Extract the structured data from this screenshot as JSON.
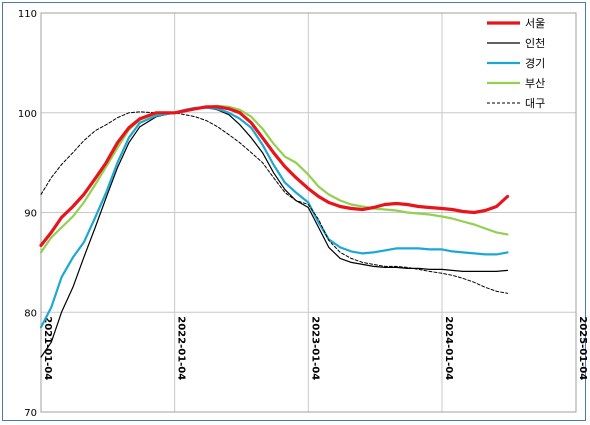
{
  "chart_data": {
    "type": "line",
    "title": "",
    "xlabel": "",
    "ylabel": "",
    "ylim": [
      70,
      110
    ],
    "yticks": [
      70,
      80,
      90,
      100,
      110
    ],
    "xlim": [
      "2021-01-04",
      "2025-01-04"
    ],
    "xticks": [
      "2021-01-04",
      "2022-01-04",
      "2023-01-04",
      "2024-01-04",
      "2025-01-04"
    ],
    "grid": true,
    "legend": "top-right",
    "series": [
      {
        "name": "서울",
        "color": "#e8141b",
        "style": "solid-thick",
        "points": [
          [
            "2021-01-04",
            86.7
          ],
          [
            "2021-02-01",
            88.0
          ],
          [
            "2021-03-01",
            89.5
          ],
          [
            "2021-04-01",
            90.6
          ],
          [
            "2021-05-01",
            91.8
          ],
          [
            "2021-06-01",
            93.4
          ],
          [
            "2021-07-01",
            95.0
          ],
          [
            "2021-08-01",
            97.0
          ],
          [
            "2021-09-01",
            98.5
          ],
          [
            "2021-10-01",
            99.4
          ],
          [
            "2021-11-15",
            100.0
          ],
          [
            "2022-01-04",
            100.0
          ],
          [
            "2022-02-01",
            100.2
          ],
          [
            "2022-03-01",
            100.4
          ],
          [
            "2022-04-01",
            100.6
          ],
          [
            "2022-05-01",
            100.6
          ],
          [
            "2022-06-01",
            100.4
          ],
          [
            "2022-07-01",
            100.0
          ],
          [
            "2022-08-01",
            99.0
          ],
          [
            "2022-09-01",
            97.5
          ],
          [
            "2022-10-01",
            96.0
          ],
          [
            "2022-11-01",
            94.6
          ],
          [
            "2022-12-01",
            93.5
          ],
          [
            "2023-01-04",
            92.4
          ],
          [
            "2023-02-01",
            91.6
          ],
          [
            "2023-03-01",
            91.0
          ],
          [
            "2023-04-01",
            90.6
          ],
          [
            "2023-05-01",
            90.4
          ],
          [
            "2023-06-01",
            90.3
          ],
          [
            "2023-07-01",
            90.5
          ],
          [
            "2023-08-01",
            90.8
          ],
          [
            "2023-09-01",
            90.9
          ],
          [
            "2023-10-01",
            90.8
          ],
          [
            "2023-11-01",
            90.6
          ],
          [
            "2023-12-01",
            90.5
          ],
          [
            "2024-01-04",
            90.4
          ],
          [
            "2024-02-01",
            90.3
          ],
          [
            "2024-03-01",
            90.1
          ],
          [
            "2024-04-01",
            90.0
          ],
          [
            "2024-05-01",
            90.2
          ],
          [
            "2024-06-01",
            90.6
          ],
          [
            "2024-07-01",
            91.6
          ]
        ]
      },
      {
        "name": "인천",
        "color": "#000000",
        "style": "solid-thin",
        "points": [
          [
            "2021-01-04",
            75.5
          ],
          [
            "2021-02-01",
            77.0
          ],
          [
            "2021-03-01",
            80.0
          ],
          [
            "2021-04-01",
            82.5
          ],
          [
            "2021-05-01",
            85.5
          ],
          [
            "2021-06-01",
            88.5
          ],
          [
            "2021-07-01",
            91.5
          ],
          [
            "2021-08-01",
            94.5
          ],
          [
            "2021-09-01",
            97.0
          ],
          [
            "2021-10-01",
            98.6
          ],
          [
            "2021-11-15",
            99.6
          ],
          [
            "2022-01-04",
            100.0
          ],
          [
            "2022-02-01",
            100.2
          ],
          [
            "2022-03-01",
            100.4
          ],
          [
            "2022-04-01",
            100.5
          ],
          [
            "2022-05-01",
            100.3
          ],
          [
            "2022-06-01",
            99.8
          ],
          [
            "2022-07-01",
            98.8
          ],
          [
            "2022-08-01",
            97.5
          ],
          [
            "2022-09-01",
            96.0
          ],
          [
            "2022-10-01",
            94.0
          ],
          [
            "2022-11-01",
            92.3
          ],
          [
            "2022-12-01",
            91.2
          ],
          [
            "2023-01-04",
            90.5
          ],
          [
            "2023-02-01",
            88.5
          ],
          [
            "2023-03-01",
            86.5
          ],
          [
            "2023-04-01",
            85.4
          ],
          [
            "2023-05-01",
            85.0
          ],
          [
            "2023-06-01",
            84.8
          ],
          [
            "2023-07-01",
            84.6
          ],
          [
            "2023-08-01",
            84.5
          ],
          [
            "2023-09-01",
            84.5
          ],
          [
            "2023-10-01",
            84.4
          ],
          [
            "2023-11-01",
            84.4
          ],
          [
            "2023-12-01",
            84.3
          ],
          [
            "2024-01-04",
            84.3
          ],
          [
            "2024-02-01",
            84.2
          ],
          [
            "2024-03-01",
            84.1
          ],
          [
            "2024-04-01",
            84.1
          ],
          [
            "2024-05-01",
            84.1
          ],
          [
            "2024-06-01",
            84.1
          ],
          [
            "2024-07-01",
            84.2
          ]
        ]
      },
      {
        "name": "경기",
        "color": "#1ba8d6",
        "style": "solid-medium",
        "points": [
          [
            "2021-01-04",
            78.5
          ],
          [
            "2021-02-01",
            80.5
          ],
          [
            "2021-03-01",
            83.5
          ],
          [
            "2021-04-01",
            85.5
          ],
          [
            "2021-05-01",
            87.0
          ],
          [
            "2021-06-01",
            89.5
          ],
          [
            "2021-07-01",
            92.0
          ],
          [
            "2021-08-01",
            95.0
          ],
          [
            "2021-09-01",
            97.5
          ],
          [
            "2021-10-01",
            99.0
          ],
          [
            "2021-11-15",
            99.7
          ],
          [
            "2022-01-04",
            100.0
          ],
          [
            "2022-02-01",
            100.3
          ],
          [
            "2022-03-01",
            100.5
          ],
          [
            "2022-04-01",
            100.5
          ],
          [
            "2022-05-01",
            100.4
          ],
          [
            "2022-06-01",
            100.0
          ],
          [
            "2022-07-01",
            99.4
          ],
          [
            "2022-08-01",
            98.5
          ],
          [
            "2022-09-01",
            96.8
          ],
          [
            "2022-10-01",
            94.8
          ],
          [
            "2022-11-01",
            93.0
          ],
          [
            "2022-12-01",
            92.0
          ],
          [
            "2023-01-04",
            91.0
          ],
          [
            "2023-02-01",
            89.0
          ],
          [
            "2023-03-01",
            87.3
          ],
          [
            "2023-04-01",
            86.5
          ],
          [
            "2023-05-01",
            86.1
          ],
          [
            "2023-06-01",
            85.9
          ],
          [
            "2023-07-01",
            86.0
          ],
          [
            "2023-08-01",
            86.2
          ],
          [
            "2023-09-01",
            86.4
          ],
          [
            "2023-10-01",
            86.4
          ],
          [
            "2023-11-01",
            86.4
          ],
          [
            "2023-12-01",
            86.3
          ],
          [
            "2024-01-04",
            86.3
          ],
          [
            "2024-02-01",
            86.1
          ],
          [
            "2024-03-01",
            86.0
          ],
          [
            "2024-04-01",
            85.9
          ],
          [
            "2024-05-01",
            85.8
          ],
          [
            "2024-06-01",
            85.8
          ],
          [
            "2024-07-01",
            86.0
          ]
        ]
      },
      {
        "name": "부산",
        "color": "#92d050",
        "style": "solid-medium",
        "points": [
          [
            "2021-01-04",
            86.0
          ],
          [
            "2021-02-01",
            87.5
          ],
          [
            "2021-03-01",
            88.5
          ],
          [
            "2021-04-01",
            89.6
          ],
          [
            "2021-05-01",
            91.0
          ],
          [
            "2021-06-01",
            92.8
          ],
          [
            "2021-07-01",
            94.6
          ],
          [
            "2021-08-01",
            96.5
          ],
          [
            "2021-09-01",
            98.3
          ],
          [
            "2021-10-01",
            99.3
          ],
          [
            "2021-11-15",
            99.9
          ],
          [
            "2022-01-04",
            100.0
          ],
          [
            "2022-02-01",
            100.2
          ],
          [
            "2022-03-01",
            100.4
          ],
          [
            "2022-04-01",
            100.6
          ],
          [
            "2022-05-01",
            100.7
          ],
          [
            "2022-06-01",
            100.6
          ],
          [
            "2022-07-01",
            100.3
          ],
          [
            "2022-08-01",
            99.6
          ],
          [
            "2022-09-01",
            98.4
          ],
          [
            "2022-10-01",
            96.9
          ],
          [
            "2022-11-01",
            95.6
          ],
          [
            "2022-12-01",
            95.0
          ],
          [
            "2023-01-04",
            93.8
          ],
          [
            "2023-02-01",
            92.6
          ],
          [
            "2023-03-01",
            91.8
          ],
          [
            "2023-04-01",
            91.2
          ],
          [
            "2023-05-01",
            90.8
          ],
          [
            "2023-06-01",
            90.6
          ],
          [
            "2023-07-01",
            90.4
          ],
          [
            "2023-08-01",
            90.3
          ],
          [
            "2023-09-01",
            90.2
          ],
          [
            "2023-10-01",
            90.0
          ],
          [
            "2023-11-01",
            89.9
          ],
          [
            "2023-12-01",
            89.8
          ],
          [
            "2024-01-04",
            89.6
          ],
          [
            "2024-02-01",
            89.4
          ],
          [
            "2024-03-01",
            89.1
          ],
          [
            "2024-04-01",
            88.8
          ],
          [
            "2024-05-01",
            88.4
          ],
          [
            "2024-06-01",
            88.0
          ],
          [
            "2024-07-01",
            87.8
          ]
        ]
      },
      {
        "name": "대구",
        "color": "#000000",
        "style": "dashed",
        "points": [
          [
            "2021-01-04",
            91.8
          ],
          [
            "2021-02-01",
            93.5
          ],
          [
            "2021-03-01",
            94.8
          ],
          [
            "2021-04-01",
            96.0
          ],
          [
            "2021-05-01",
            97.2
          ],
          [
            "2021-06-01",
            98.2
          ],
          [
            "2021-07-01",
            98.8
          ],
          [
            "2021-08-01",
            99.5
          ],
          [
            "2021-09-01",
            100.0
          ],
          [
            "2021-10-01",
            100.1
          ],
          [
            "2021-11-15",
            100.0
          ],
          [
            "2022-01-04",
            100.0
          ],
          [
            "2022-02-01",
            99.8
          ],
          [
            "2022-03-01",
            99.6
          ],
          [
            "2022-04-01",
            99.2
          ],
          [
            "2022-05-01",
            98.6
          ],
          [
            "2022-06-01",
            97.8
          ],
          [
            "2022-07-01",
            97.0
          ],
          [
            "2022-08-01",
            96.0
          ],
          [
            "2022-09-01",
            95.0
          ],
          [
            "2022-10-01",
            93.5
          ],
          [
            "2022-11-01",
            92.0
          ],
          [
            "2022-12-01",
            91.2
          ],
          [
            "2023-01-04",
            90.8
          ],
          [
            "2023-02-01",
            89.3
          ],
          [
            "2023-03-01",
            87.2
          ],
          [
            "2023-04-01",
            86.0
          ],
          [
            "2023-05-01",
            85.4
          ],
          [
            "2023-06-01",
            85.0
          ],
          [
            "2023-07-01",
            84.8
          ],
          [
            "2023-08-01",
            84.6
          ],
          [
            "2023-09-01",
            84.6
          ],
          [
            "2023-10-01",
            84.5
          ],
          [
            "2023-11-01",
            84.3
          ],
          [
            "2023-12-01",
            84.1
          ],
          [
            "2024-01-04",
            83.9
          ],
          [
            "2024-02-01",
            83.7
          ],
          [
            "2024-03-01",
            83.4
          ],
          [
            "2024-04-01",
            83.0
          ],
          [
            "2024-05-01",
            82.5
          ],
          [
            "2024-06-01",
            82.1
          ],
          [
            "2024-07-01",
            81.9
          ]
        ]
      }
    ]
  }
}
